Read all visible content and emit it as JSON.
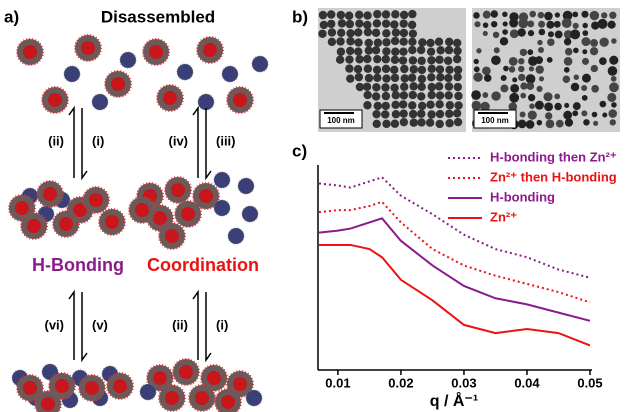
{
  "panel_a": {
    "label": "a)",
    "title": "Disassembled",
    "arrows_top": [
      "(ii)",
      "(i)",
      "(iv)",
      "(iii)"
    ],
    "states": [
      "H-Bonding",
      "Coordination"
    ],
    "arrows_bottom": [
      "(vi)",
      "(v)",
      "(ii)",
      "(i)"
    ]
  },
  "panel_b": {
    "label": "b)",
    "scale_bars": [
      "100 nm",
      "100 nm"
    ]
  },
  "chart_data": {
    "type": "line",
    "label": "c)",
    "x_label": "q / Å⁻¹",
    "x": [
      0.007,
      0.01,
      0.012,
      0.015,
      0.017,
      0.02,
      0.025,
      0.03,
      0.035,
      0.04,
      0.045,
      0.05
    ],
    "xlim": [
      0.007,
      0.05
    ],
    "xticks": [
      0.01,
      0.02,
      0.03,
      0.04,
      0.05
    ],
    "ylim": [
      0,
      10
    ],
    "legend": "upper right",
    "series": [
      {
        "name": "H-bonding then Zn²⁺",
        "color": "#8b1a8b",
        "style": "dotted",
        "values": [
          9.1,
          9.0,
          8.9,
          9.2,
          9.4,
          8.5,
          7.6,
          6.6,
          5.9,
          5.5,
          4.9,
          4.5
        ]
      },
      {
        "name": "Zn²⁺ then H-bonding",
        "color": "#ee1111",
        "style": "dotted",
        "values": [
          7.7,
          7.8,
          7.8,
          8.0,
          8.2,
          7.2,
          5.9,
          5.1,
          4.6,
          4.2,
          3.8,
          3.3
        ]
      },
      {
        "name": "H-bonding",
        "color": "#8b1a8b",
        "style": "solid",
        "values": [
          6.7,
          6.8,
          6.9,
          7.2,
          7.4,
          6.3,
          5.1,
          4.1,
          3.5,
          3.2,
          2.8,
          2.4
        ]
      },
      {
        "name": "Zn²⁺",
        "color": "#ee1111",
        "style": "solid",
        "values": [
          6.1,
          6.1,
          6.1,
          5.9,
          5.5,
          4.4,
          3.4,
          2.2,
          1.8,
          2.0,
          1.8,
          1.2
        ]
      }
    ]
  }
}
